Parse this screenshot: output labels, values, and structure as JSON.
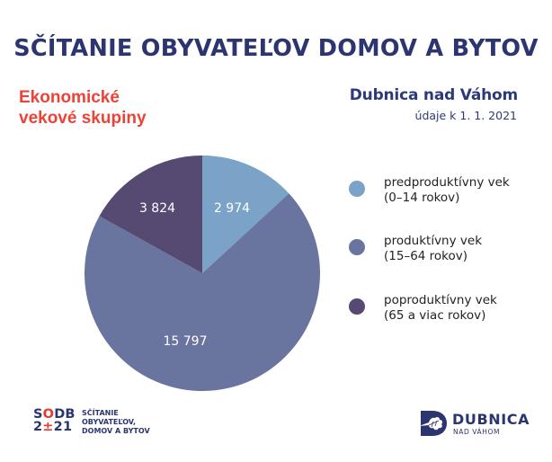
{
  "header": {
    "title": "SČÍTANIE OBYVATEĽOV DOMOV A BYTOV",
    "subtitle_line1": "Ekonomické",
    "subtitle_line2": "vekové skupiny",
    "region": "Dubnica nad Váhom",
    "date": "údaje k 1. 1. 2021"
  },
  "colors": {
    "title": "#2C3570",
    "subtitle": "#EE4236",
    "predproduktivny": "#7BA2C7",
    "produktivny": "#6A759F",
    "poproduktivny": "#574A72"
  },
  "chart_data": {
    "type": "pie",
    "title": "Ekonomické vekové skupiny",
    "subtitle": "Dubnica nad Váhom, údaje k 1. 1. 2021",
    "categories": [
      "predproduktívny vek (0–14 rokov)",
      "produktívny vek (15–64 rokov)",
      "poproduktívny vek (65 a viac rokov)"
    ],
    "values": [
      2974,
      15797,
      3824
    ],
    "value_labels": [
      "2 974",
      "15 797",
      "3 824"
    ],
    "colors": [
      "#7BA2C7",
      "#6A759F",
      "#574A72"
    ],
    "start_angle": "12 o'clock",
    "direction": "clockwise",
    "legend_position": "right"
  },
  "legend": [
    {
      "line1": "predproduktívny vek",
      "line2": "(0–14 rokov)",
      "color": "#7BA2C7"
    },
    {
      "line1": "produktívny vek",
      "line2": "(15–64 rokov)",
      "color": "#6A759F"
    },
    {
      "line1": "poproduktívny vek",
      "line2": "(65 a viac rokov)",
      "color": "#574A72"
    }
  ],
  "footer": {
    "sodb_logo": {
      "line1_a": "S",
      "line1_b": "O",
      "line1_c": "DB",
      "line2_a": "2",
      "line2_b": "±",
      "line2_c": "21"
    },
    "sodb_text": [
      "SČÍTANIE",
      "OBYVATEĽOV,",
      "DOMOV A BYTOV"
    ],
    "dubnica_logo_icon": "oak-leaf-d-icon",
    "dubnica_name": "DUBNICA",
    "dubnica_sub": "NAD VÁHOM"
  }
}
